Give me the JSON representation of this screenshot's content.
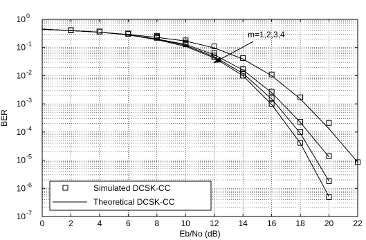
{
  "chart_data": {
    "type": "line",
    "xlabel": "Eb/No (dB)",
    "ylabel": "BER",
    "xlim": [
      0,
      22
    ],
    "ylim_log10": [
      -7,
      0
    ],
    "yscale": "log",
    "grid": true,
    "legend_placement": "bottom-left",
    "xticks": [
      "0",
      "2",
      "4",
      "6",
      "8",
      "10",
      "12",
      "14",
      "16",
      "18",
      "20",
      "22"
    ],
    "yticks": [
      {
        "base": "10",
        "exp": "0"
      },
      {
        "base": "10",
        "exp": "-1"
      },
      {
        "base": "10",
        "exp": "-2"
      },
      {
        "base": "10",
        "exp": "-3"
      },
      {
        "base": "10",
        "exp": "-4"
      },
      {
        "base": "10",
        "exp": "-5"
      },
      {
        "base": "10",
        "exp": "-6"
      },
      {
        "base": "10",
        "exp": "-7"
      }
    ],
    "annotation": "m=1,2,3,4",
    "legend": {
      "simulated": "Simulated DCSK-CC",
      "theoretical": "Theoretical DCSK-CC"
    },
    "series": [
      {
        "theoretical": {
          "x": [
            0,
            2,
            4,
            6,
            8,
            10,
            12,
            14,
            16,
            18,
            20,
            22
          ],
          "y": [
            0.45,
            0.4,
            0.35,
            0.29,
            0.23,
            0.17,
            0.097,
            0.039,
            0.01,
            0.0015,
            0.00013,
            8.5e-06
          ]
        },
        "simulated": {
          "x": [
            2,
            4,
            6,
            8,
            10,
            12,
            14,
            16,
            18,
            20,
            22
          ],
          "y": [
            0.41,
            0.37,
            0.31,
            0.26,
            0.18,
            0.11,
            0.042,
            0.011,
            0.0017,
            0.00021,
            8.5e-06
          ]
        }
      },
      {
        "theoretical": {
          "x": [
            0,
            2,
            4,
            6,
            8,
            10,
            12,
            14,
            16,
            18,
            20
          ],
          "y": [
            0.45,
            0.4,
            0.35,
            0.28,
            0.2,
            0.13,
            0.055,
            0.016,
            0.0025,
            0.00022,
            1.3e-05
          ]
        },
        "simulated": {
          "x": [
            2,
            4,
            6,
            8,
            10,
            12,
            14,
            16,
            18,
            20
          ],
          "y": [
            0.41,
            0.37,
            0.31,
            0.24,
            0.15,
            0.064,
            0.017,
            0.0027,
            0.00023,
            1.4e-05
          ]
        }
      },
      {
        "theoretical": {
          "x": [
            0,
            2,
            4,
            6,
            8,
            10,
            12,
            14,
            16,
            18,
            20
          ],
          "y": [
            0.45,
            0.4,
            0.35,
            0.28,
            0.2,
            0.12,
            0.047,
            0.012,
            0.0015,
            9e-05,
            1.8e-06
          ]
        },
        "simulated": {
          "x": [
            2,
            4,
            6,
            8,
            10,
            12,
            14,
            16,
            18,
            20
          ],
          "y": [
            0.41,
            0.37,
            0.31,
            0.23,
            0.14,
            0.052,
            0.013,
            0.0016,
            0.0001,
            1.8e-06
          ]
        }
      },
      {
        "theoretical": {
          "x": [
            0,
            2,
            4,
            6,
            8,
            10,
            12,
            14,
            16,
            18,
            20
          ],
          "y": [
            0.45,
            0.4,
            0.35,
            0.28,
            0.19,
            0.11,
            0.043,
            0.01,
            0.00095,
            4e-05,
            5e-07
          ]
        },
        "simulated": {
          "x": [
            2,
            4,
            6,
            8,
            10,
            12,
            14,
            16,
            18,
            20
          ],
          "y": [
            0.41,
            0.37,
            0.31,
            0.22,
            0.13,
            0.045,
            0.01,
            0.001,
            4.1e-05,
            4.9e-07
          ]
        }
      }
    ]
  }
}
